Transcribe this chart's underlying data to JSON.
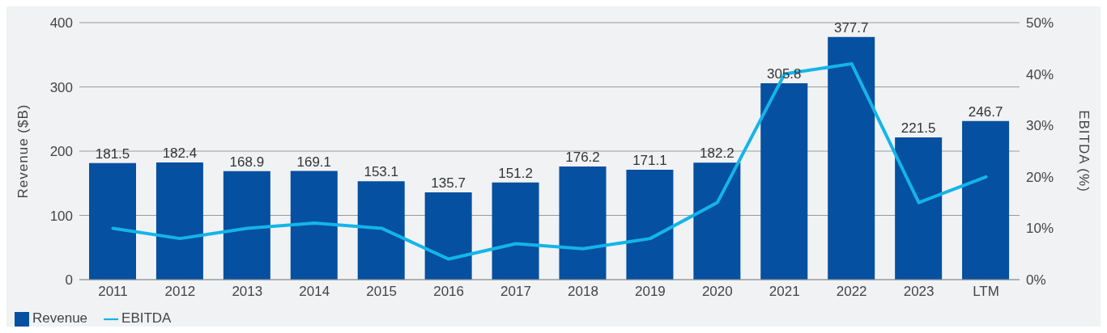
{
  "chart_data": {
    "type": "bar",
    "xlabel": null,
    "ylabel": "Revenue ($B)",
    "y2label": "EBITDA (%)",
    "categories": [
      "2011",
      "2012",
      "2013",
      "2014",
      "2015",
      "2016",
      "2017",
      "2018",
      "2019",
      "2020",
      "2021",
      "2022",
      "2023",
      "LTM"
    ],
    "series": [
      {
        "name": "Revenue",
        "color": "#0550a0",
        "values": [
          181.5,
          182.4,
          168.9,
          169.1,
          153.1,
          135.7,
          151.2,
          176.2,
          171.1,
          182.2,
          305.8,
          377.7,
          221.5,
          246.7
        ],
        "data_labels": true
      },
      {
        "name": "EBITDA",
        "type": "line",
        "axis": "y2",
        "color": "#14b4ea",
        "values": [
          10,
          8,
          10,
          11,
          10,
          4,
          7,
          6,
          8,
          15,
          40,
          42,
          15,
          20
        ]
      }
    ],
    "ylim": [
      0,
      400
    ],
    "yticks": [
      0,
      100,
      200,
      300,
      400
    ],
    "y2lim": [
      0,
      50
    ],
    "y2ticks": [
      {
        "value": 0,
        "label": "0%"
      },
      {
        "value": 10,
        "label": "10%"
      },
      {
        "value": 20,
        "label": "20%"
      },
      {
        "value": 30,
        "label": "30%"
      },
      {
        "value": 40,
        "label": "40%"
      },
      {
        "value": 50,
        "label": "50%"
      }
    ],
    "grid": "y",
    "legend": "bottom left",
    "marker": "none",
    "line_style": "solid"
  }
}
